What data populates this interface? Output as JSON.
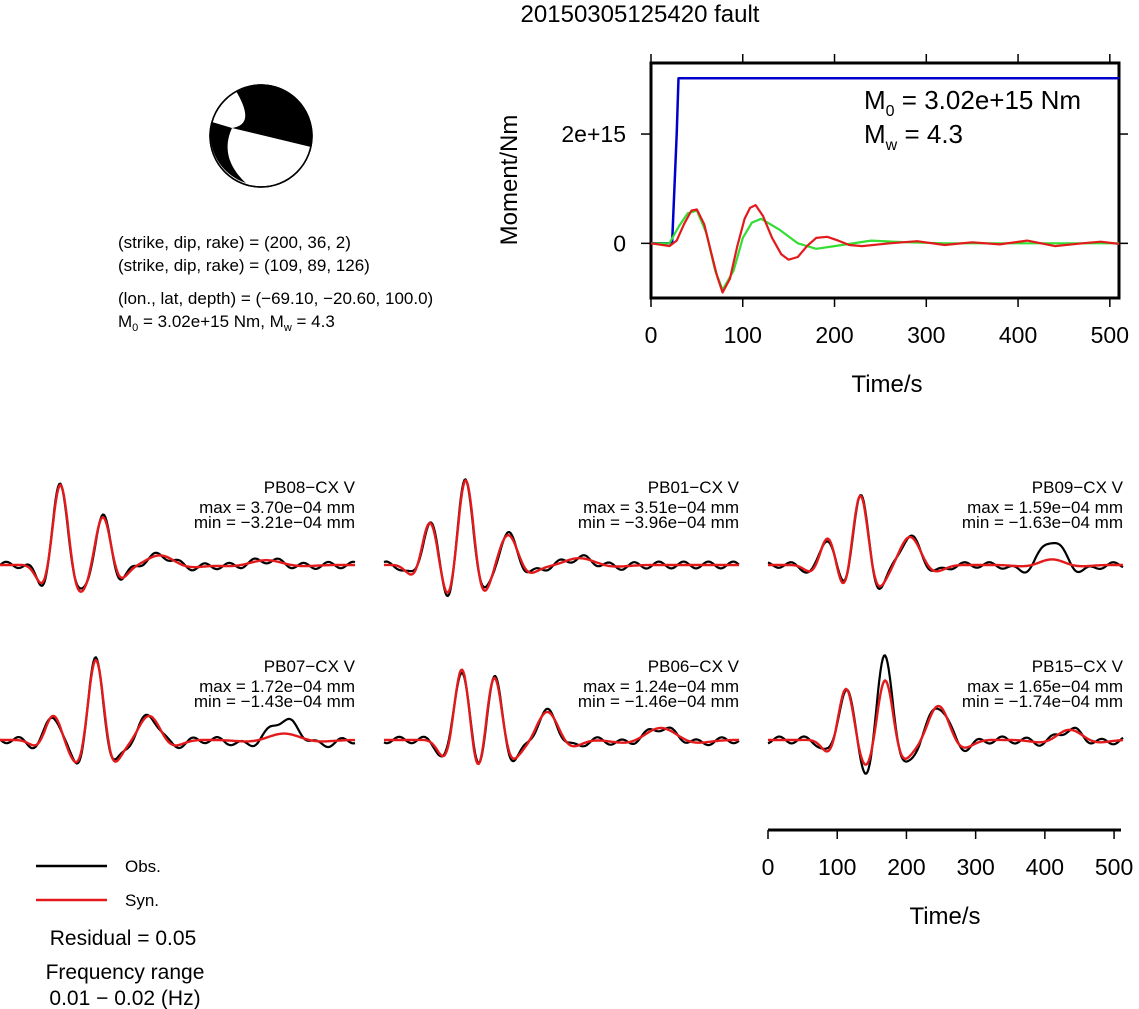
{
  "title": "20150305125420 fault",
  "mechanism": {
    "line1": "(strike, dip, rake) = (200, 36, 2)",
    "line2": "(strike, dip, rake) = (109, 89, 126)",
    "location": "(lon., lat, depth) = (−69.10, −20.60, 100.0)",
    "m0_label": "M",
    "m0_sub": "0",
    "m0_rest": " = 3.02e+15 Nm, M",
    "mw_sub": "w",
    "mw_rest": " = 4.3"
  },
  "colors": {
    "observed": "#000000",
    "synthetic": "#e31a1c",
    "moment_step": "#0000cc",
    "moment_green": "#33dd33"
  },
  "chart_data": [
    {
      "type": "line",
      "name": "moment-function",
      "xlabel": "Time/s",
      "ylabel": "Moment/Nm",
      "xlim": [
        0,
        510
      ],
      "ylim": [
        -1000000000000000.0,
        3300000000000000.0
      ],
      "xticks": [
        "0",
        "100",
        "200",
        "300",
        "400",
        "500"
      ],
      "xtick_values": [
        0,
        100,
        200,
        300,
        400,
        500
      ],
      "yticks": [
        "0",
        "2e+15"
      ],
      "ytick_values": [
        0,
        2000000000000000.0
      ],
      "annotation": {
        "m0_text": "M",
        "m0_sub": "0",
        "m0_rest": " = 3.02e+15 Nm",
        "mw_text": "M",
        "mw_sub": "w",
        "mw_rest": " = 4.3"
      },
      "series": [
        {
          "color": "blue",
          "x": [
            0,
            23,
            28,
            30,
            510
          ],
          "y": [
            0,
            0,
            2000000000000000.0,
            3020000000000000.0,
            3020000000000000.0
          ]
        },
        {
          "color": "green",
          "x": [
            0,
            20,
            30,
            40,
            50,
            60,
            70,
            78,
            90,
            100,
            110,
            120,
            140,
            160,
            180,
            200,
            240,
            280,
            320,
            400,
            510
          ],
          "y": [
            0,
            0,
            300000000000000.0,
            550000000000000.0,
            600000000000000.0,
            200000000000000.0,
            -500000000000000.0,
            -850000000000000.0,
            -500000000000000.0,
            100000000000000.0,
            380000000000000.0,
            450000000000000.0,
            250000000000000.0,
            0.0,
            -100000000000000.0,
            -50000000000000.0,
            50000000000000.0,
            20000000000000.0,
            0.0,
            0.0,
            0.0
          ]
        },
        {
          "color": "red",
          "x": [
            0,
            20,
            28,
            36,
            44,
            50,
            58,
            66,
            72,
            78,
            86,
            94,
            102,
            108,
            114,
            122,
            132,
            142,
            150,
            160,
            170,
            180,
            192,
            204,
            216,
            230,
            260,
            290,
            320,
            350,
            380,
            410,
            440,
            470,
            490,
            510
          ],
          "y": [
            0,
            -50000000000000.0,
            50000000000000.0,
            350000000000000.0,
            600000000000000.0,
            620000000000000.0,
            350000000000000.0,
            -200000000000000.0,
            -600000000000000.0,
            -900000000000000.0,
            -650000000000000.0,
            -50000000000000.0,
            450000000000000.0,
            650000000000000.0,
            700000000000000.0,
            500000000000000.0,
            100000000000000.0,
            -200000000000000.0,
            -300000000000000.0,
            -250000000000000.0,
            -50000000000000.0,
            100000000000000.0,
            120000000000000.0,
            50000000000000.0,
            -30000000000000.0,
            -50000000000000.0,
            0.0,
            40000000000000.0,
            -30000000000000.0,
            20000000000000.0,
            -20000000000000.0,
            50000000000000.0,
            -50000000000000.0,
            0.0,
            30000000000000.0,
            -10000000000000.0
          ]
        }
      ]
    },
    {
      "type": "line",
      "name": "waveforms",
      "xlabel": "Time/s",
      "xlim": [
        0,
        510
      ],
      "xticks": [
        "0",
        "100",
        "200",
        "300",
        "400",
        "500"
      ],
      "xtick_values": [
        0,
        100,
        200,
        300,
        400,
        500
      ],
      "stations": [
        {
          "label": "PB08−CX V",
          "max": "max = 3.70e−04 mm",
          "min": "min = −3.21e−04 mm"
        },
        {
          "label": "PB01−CX V",
          "max": "max = 3.51e−04 mm",
          "min": "min = −3.96e−04 mm"
        },
        {
          "label": "PB09−CX V",
          "max": "max = 1.59e−04 mm",
          "min": "min = −1.63e−04 mm"
        },
        {
          "label": "PB07−CX V",
          "max": "max = 1.72e−04 mm",
          "min": "min = −1.43e−04 mm"
        },
        {
          "label": "PB06−CX V",
          "max": "max = 1.24e−04 mm",
          "min": "min = −1.46e−04 mm"
        },
        {
          "label": "PB15−CX V",
          "max": "max = 1.65e−04 mm",
          "min": "min = −1.74e−04 mm"
        }
      ]
    }
  ],
  "legend": {
    "obs": "Obs.",
    "syn": "Syn."
  },
  "residual": "Residual = 0.05",
  "freq_label": "Frequency range",
  "freq_value": "0.01 − 0.02 (Hz)"
}
